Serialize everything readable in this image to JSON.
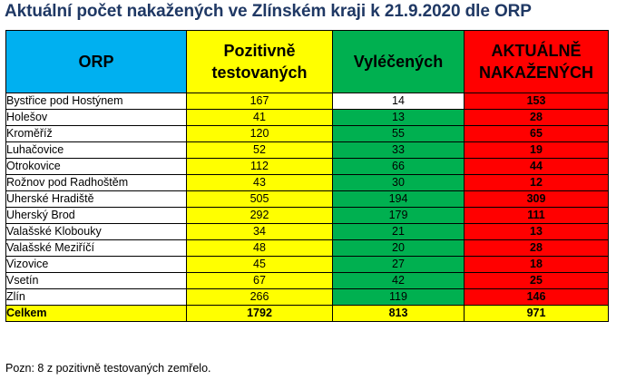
{
  "title": "Aktuální počet nakažených ve Zlínském kraji k 21.9.2020 dle ORP",
  "chart_data": {
    "type": "table",
    "title": "Aktuální počet nakažených ve Zlínském kraji k 21.9.2020 dle ORP",
    "columns": {
      "orp": "ORP",
      "positive_l1": "Pozitivně",
      "positive_l2": "testovaných",
      "recovered": "Vyléčených",
      "active_l1": "AKTUÁLNĚ",
      "active_l2": "NAKAŽENÝCH"
    },
    "rows": [
      {
        "orp": "Bystřice pod Hostýnem",
        "positive": 167,
        "recovered": 14,
        "active": 153
      },
      {
        "orp": "Holešov",
        "positive": 41,
        "recovered": 13,
        "active": 28
      },
      {
        "orp": "Kroměříž",
        "positive": 120,
        "recovered": 55,
        "active": 65
      },
      {
        "orp": "Luhačovice",
        "positive": 52,
        "recovered": 33,
        "active": 19
      },
      {
        "orp": "Otrokovice",
        "positive": 112,
        "recovered": 66,
        "active": 44
      },
      {
        "orp": "Rožnov pod Radhoštěm",
        "positive": 43,
        "recovered": 30,
        "active": 12
      },
      {
        "orp": "Uherské Hradiště",
        "positive": 505,
        "recovered": 194,
        "active": 309
      },
      {
        "orp": "Uherský Brod",
        "positive": 292,
        "recovered": 179,
        "active": 111
      },
      {
        "orp": "Valašské Klobouky",
        "positive": 34,
        "recovered": 21,
        "active": 13
      },
      {
        "orp": "Valašské Meziříčí",
        "positive": 48,
        "recovered": 20,
        "active": 28
      },
      {
        "orp": "Vizovice",
        "positive": 45,
        "recovered": 27,
        "active": 18
      },
      {
        "orp": "Vsetín",
        "positive": 67,
        "recovered": 42,
        "active": 25
      },
      {
        "orp": "Zlín",
        "positive": 266,
        "recovered": 119,
        "active": 146
      }
    ],
    "total": {
      "orp": "Celkem",
      "positive": 1792,
      "recovered": 813,
      "active": 971
    },
    "colors": {
      "orp_header": "#00b0f0",
      "positive": "#ffff00",
      "recovered_high": "#00b050",
      "recovered_low": "#ffffff",
      "active": "#ff0000",
      "title": "#1f3864"
    }
  },
  "note": "Pozn: 8 z pozitivně testovaných zemřelo."
}
